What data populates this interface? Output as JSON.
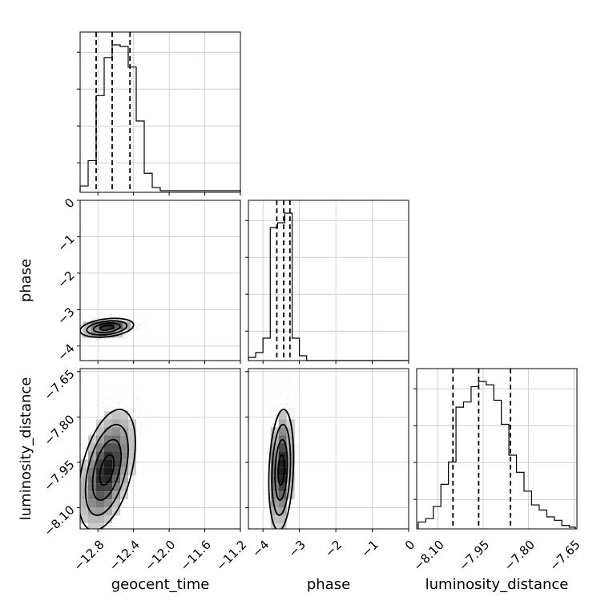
{
  "chart_data": {
    "type": "corner",
    "parameters": [
      "geocent_time",
      "phase",
      "luminosity_distance"
    ],
    "axis_labels": {
      "geocent_time": "geocent_time",
      "phase": "phase",
      "luminosity_distance": "luminosity_distance"
    },
    "ranges": {
      "geocent_time": [
        -13.0,
        -11.2
      ],
      "phase": [
        -4.4,
        0.0
      ],
      "luminosity_distance": [
        -8.17,
        -7.64
      ]
    },
    "ticks": {
      "geocent_time": {
        "values": [
          -12.8,
          -12.4,
          -12.0,
          -11.6,
          -11.2
        ],
        "labels": [
          "−12.8",
          "−12.4",
          "−12.0",
          "−11.6",
          "−11.2"
        ]
      },
      "phase": {
        "values": [
          -4,
          -3,
          -2,
          -1,
          0
        ],
        "labels": [
          "−4",
          "−3",
          "−2",
          "−1",
          "0"
        ]
      },
      "luminosity_distance": {
        "values": [
          -8.1,
          -7.95,
          -7.8,
          -7.65
        ],
        "labels": [
          "−8.10",
          "−7.95",
          "−7.80",
          "−7.65"
        ]
      }
    },
    "grid": true,
    "histograms": {
      "geocent_time": {
        "bins": [
          -13.0,
          -12.91,
          -12.82,
          -12.73,
          -12.64,
          -12.55,
          -12.46,
          -12.37,
          -12.28,
          -12.19,
          -12.1,
          -11.2
        ],
        "counts": [
          0.04,
          0.2,
          0.61,
          0.85,
          0.93,
          0.92,
          0.79,
          0.45,
          0.12,
          0.03,
          0.01
        ],
        "quantiles": [
          -12.82,
          -12.64,
          -12.44
        ]
      },
      "phase": {
        "bins": [
          -4.4,
          -4.2,
          -4.0,
          -3.8,
          -3.6,
          -3.4,
          -3.2,
          -3.0,
          -2.8,
          0.0
        ],
        "counts": [
          0.02,
          0.05,
          0.14,
          0.83,
          0.86,
          0.92,
          0.14,
          0.03,
          0.0
        ],
        "quantiles": [
          -3.62,
          -3.43,
          -3.26
        ]
      },
      "luminosity_distance": {
        "bins": [
          -8.165,
          -8.14,
          -8.115,
          -8.09,
          -8.065,
          -8.04,
          -8.015,
          -7.99,
          -7.965,
          -7.94,
          -7.915,
          -7.89,
          -7.865,
          -7.84,
          -7.815,
          -7.79,
          -7.765,
          -7.74,
          -7.715,
          -7.69,
          -7.665,
          -7.645
        ],
        "counts": [
          0.04,
          0.06,
          0.13,
          0.26,
          0.39,
          0.71,
          0.74,
          0.83,
          0.86,
          0.84,
          0.75,
          0.61,
          0.43,
          0.33,
          0.22,
          0.14,
          0.11,
          0.07,
          0.05,
          0.02,
          0.01
        ],
        "quantiles": [
          -8.05,
          -7.965,
          -7.86
        ]
      }
    },
    "scatter_2d": [
      {
        "x": "geocent_time",
        "y": "phase",
        "center": [
          -12.7,
          -3.5
        ],
        "sigma": [
          0.15,
          0.13
        ],
        "rho": 0.3
      },
      {
        "x": "geocent_time",
        "y": "luminosity_distance",
        "center": [
          -12.7,
          -7.975
        ],
        "sigma": [
          0.16,
          0.1
        ],
        "rho": 0.45
      },
      {
        "x": "phase",
        "y": "luminosity_distance",
        "center": [
          -3.5,
          -7.975
        ],
        "sigma": [
          0.17,
          0.1
        ],
        "rho": 0.2
      }
    ],
    "contour_levels": [
      0.5,
      1.0,
      1.5,
      2.0
    ]
  }
}
